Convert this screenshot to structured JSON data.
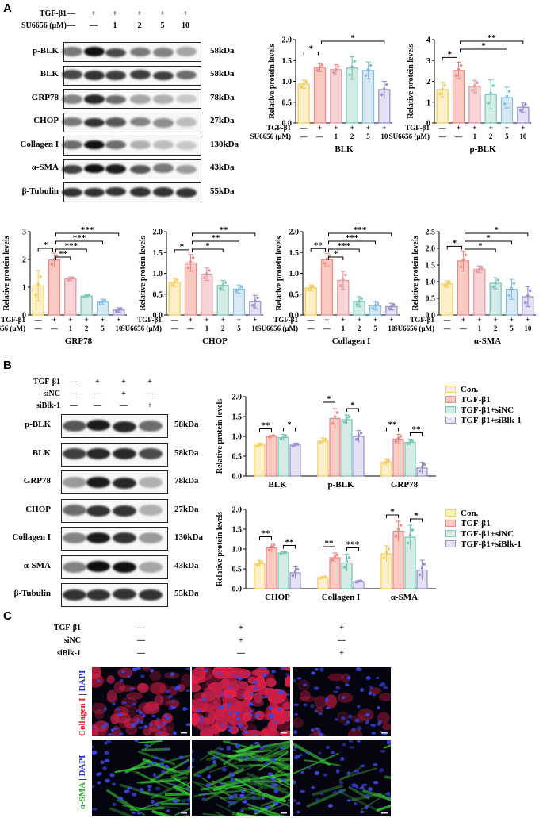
{
  "panels": {
    "A": "A",
    "B": "B",
    "C": "C"
  },
  "units": {
    "relative": "Relative protein levels",
    "tgf": "TGF-β1",
    "su": "SU6656 (μM)"
  },
  "panelA": {
    "header_row1": [
      "—",
      "+",
      "+",
      "+",
      "+",
      "+"
    ],
    "header_row2": [
      "—",
      "—",
      "1",
      "2",
      "5",
      "10"
    ],
    "blots": [
      {
        "name": "p-BLK",
        "kda": "58kDa"
      },
      {
        "name": "BLK",
        "kda": "58kDa"
      },
      {
        "name": "GRP78",
        "kda": "78kDa"
      },
      {
        "name": "CHOP",
        "kda": "27kDa"
      },
      {
        "name": "Collagen I",
        "kda": "130kDa"
      },
      {
        "name": "α-SMA",
        "kda": "43kDa"
      },
      {
        "name": "β-Tubulin",
        "kda": "55kDa"
      }
    ]
  },
  "panelB": {
    "header_labels": [
      "TGF-β1",
      "siNC",
      "siBlk-1"
    ],
    "header_rows": [
      [
        "—",
        "+",
        "+",
        "+"
      ],
      [
        "—",
        "—",
        "+",
        "—"
      ],
      [
        "—",
        "—",
        "—",
        "+"
      ]
    ],
    "blots": [
      {
        "name": "p-BLK",
        "kda": "58kDa"
      },
      {
        "name": "BLK",
        "kda": "58kDa"
      },
      {
        "name": "GRP78",
        "kda": "78kDa"
      },
      {
        "name": "CHOP",
        "kda": "27kDa"
      },
      {
        "name": "Collagen I",
        "kda": "130kDa"
      },
      {
        "name": "α-SMA",
        "kda": "43kDa"
      },
      {
        "name": "β-Tubulin",
        "kda": "55kDa"
      }
    ],
    "legend": [
      "Con.",
      "TGF-β1",
      "TGF-β1+siNC",
      "TGF-β1+siBlk-1"
    ]
  },
  "panelC": {
    "header_labels": [
      "TGF-β1",
      "siNC",
      "siBlk-1"
    ],
    "header_rows": [
      [
        "—",
        "+",
        "+"
      ],
      [
        "—",
        "+",
        "—"
      ],
      [
        "—",
        "—",
        "+"
      ]
    ],
    "row_labels": [
      {
        "stain": "Collagen I",
        "sep": " | ",
        "dapi": "DAPI"
      },
      {
        "stain": "α-SMA",
        "sep": " | ",
        "dapi": "DAPI"
      }
    ]
  },
  "colors": {
    "fills6": [
      "#fdf0c8",
      "#f9c9c4",
      "#f7d3d6",
      "#d4ebe7",
      "#d8e9f4",
      "#e4e1f2"
    ],
    "strokes6": [
      "#f2cf63",
      "#ec8c86",
      "#e79aa2",
      "#7ec8bb",
      "#8ac1e2",
      "#9b93cf"
    ],
    "fills4": [
      "#fdf0c8",
      "#f9c9c4",
      "#d4ebe7",
      "#e4e1f2"
    ],
    "strokes4": [
      "#f2cf63",
      "#ec8c86",
      "#7ec8bb",
      "#9b93cf"
    ]
  },
  "chart_data": [
    {
      "type": "bar",
      "xlabel": "BLK",
      "ylabel": "Relative protein levels",
      "ylim": [
        0,
        2.0
      ],
      "yticks": [
        "0.0",
        "0.5",
        "1.0",
        "1.5",
        "2.0"
      ],
      "values": [
        0.93,
        1.33,
        1.28,
        1.32,
        1.26,
        0.8
      ],
      "errors": [
        0.1,
        0.1,
        0.12,
        0.27,
        0.2,
        0.2
      ],
      "signif": [
        {
          "from": 0,
          "to": 1,
          "label": "*",
          "level": 0
        },
        {
          "from": 1,
          "to": 5,
          "label": "*",
          "level": 0
        }
      ]
    },
    {
      "type": "bar",
      "xlabel": "p-BLK",
      "ylabel": "Relative protein levels",
      "ylim": [
        0,
        4
      ],
      "yticks": [
        "0",
        "1",
        "2",
        "3",
        "4"
      ],
      "values": [
        1.6,
        2.52,
        1.75,
        1.37,
        1.22,
        0.75
      ],
      "errors": [
        0.35,
        0.4,
        0.3,
        0.7,
        0.5,
        0.25
      ],
      "signif": [
        {
          "from": 0,
          "to": 1,
          "label": "*",
          "level": 0
        },
        {
          "from": 1,
          "to": 5,
          "label": "**",
          "level": 0
        },
        {
          "from": 1,
          "to": 4,
          "label": "*",
          "level": 1
        }
      ]
    },
    {
      "type": "bar",
      "xlabel": "GRP78",
      "ylabel": "Relative protein levels",
      "ylim": [
        0,
        3
      ],
      "yticks": [
        "0",
        "1",
        "2",
        "3"
      ],
      "values": [
        1.05,
        1.98,
        1.3,
        0.68,
        0.47,
        0.18
      ],
      "errors": [
        0.55,
        0.25,
        0.07,
        0.05,
        0.1,
        0.08
      ],
      "signif": [
        {
          "from": 0,
          "to": 1,
          "label": "*",
          "level": 0
        },
        {
          "from": 1,
          "to": 5,
          "label": "***",
          "level": 0
        },
        {
          "from": 1,
          "to": 4,
          "label": "***",
          "level": 1
        },
        {
          "from": 1,
          "to": 3,
          "label": "***",
          "level": 2
        },
        {
          "from": 1,
          "to": 2,
          "label": "**",
          "level": 3
        }
      ]
    },
    {
      "type": "bar",
      "xlabel": "CHOP",
      "ylabel": "Relative protein levels",
      "ylim": [
        0,
        2.0
      ],
      "yticks": [
        "0.0",
        "0.5",
        "1.0",
        "1.5",
        "2.0"
      ],
      "values": [
        0.78,
        1.25,
        0.98,
        0.71,
        0.62,
        0.32
      ],
      "errors": [
        0.1,
        0.2,
        0.15,
        0.12,
        0.1,
        0.15
      ],
      "signif": [
        {
          "from": 0,
          "to": 1,
          "label": "*",
          "level": 0
        },
        {
          "from": 1,
          "to": 5,
          "label": "**",
          "level": 0
        },
        {
          "from": 1,
          "to": 4,
          "label": "**",
          "level": 1
        },
        {
          "from": 1,
          "to": 3,
          "label": "*",
          "level": 2
        }
      ]
    },
    {
      "type": "bar",
      "xlabel": "Collagen I",
      "ylabel": "Relative protein levels",
      "ylim": [
        0,
        2.0
      ],
      "yticks": [
        "0.0",
        "0.5",
        "1.0",
        "1.5",
        "2.0"
      ],
      "values": [
        0.65,
        1.33,
        0.83,
        0.32,
        0.22,
        0.2
      ],
      "errors": [
        0.07,
        0.15,
        0.22,
        0.12,
        0.1,
        0.08
      ],
      "signif": [
        {
          "from": 0,
          "to": 1,
          "label": "**",
          "level": 0
        },
        {
          "from": 1,
          "to": 5,
          "label": "***",
          "level": 0
        },
        {
          "from": 1,
          "to": 4,
          "label": "***",
          "level": 1
        },
        {
          "from": 1,
          "to": 3,
          "label": "***",
          "level": 2
        },
        {
          "from": 1,
          "to": 2,
          "label": "*",
          "level": 3
        }
      ]
    },
    {
      "type": "bar",
      "xlabel": "α-SMA",
      "ylabel": "Relative protein levels",
      "ylim": [
        0,
        2.5
      ],
      "yticks": [
        "0.0",
        "0.5",
        "1.0",
        "1.5",
        "2.0",
        "2.5"
      ],
      "values": [
        0.93,
        1.62,
        1.37,
        0.95,
        0.77,
        0.55
      ],
      "errors": [
        0.1,
        0.3,
        0.1,
        0.17,
        0.3,
        0.3
      ],
      "signif": [
        {
          "from": 0,
          "to": 1,
          "label": "*",
          "level": 0
        },
        {
          "from": 1,
          "to": 5,
          "label": "*",
          "level": 0
        },
        {
          "from": 1,
          "to": 4,
          "label": "*",
          "level": 1
        },
        {
          "from": 1,
          "to": 3,
          "label": "*",
          "level": 2
        }
      ]
    },
    {
      "type": "grouped-bar",
      "categories": [
        "BLK",
        "p-BLK",
        "GRP78"
      ],
      "ylabel": "Relative protein levels",
      "ylim": [
        0,
        2.0
      ],
      "yticks": [
        "0.0",
        "0.5",
        "1.0",
        "1.5",
        "2.0"
      ],
      "series": [
        {
          "name": "Con.",
          "values": [
            0.78,
            0.88,
            0.35
          ]
        },
        {
          "name": "TGF-β1",
          "values": [
            1.0,
            1.45,
            0.93
          ]
        },
        {
          "name": "TGF-β1+siNC",
          "values": [
            0.97,
            1.42,
            0.85
          ]
        },
        {
          "name": "TGF-β1+siBlk-1",
          "values": [
            0.78,
            1.0,
            0.2
          ]
        }
      ],
      "errors": [
        [
          0.05,
          0.08,
          0.08
        ],
        [
          0.03,
          0.25,
          0.12
        ],
        [
          0.08,
          0.12,
          0.08
        ],
        [
          0.05,
          0.15,
          0.15
        ]
      ],
      "signif": [
        {
          "cat": 0,
          "from": 0,
          "to": 1,
          "label": "**"
        },
        {
          "cat": 0,
          "from": 2,
          "to": 3,
          "label": "*"
        },
        {
          "cat": 1,
          "from": 0,
          "to": 1,
          "label": "*"
        },
        {
          "cat": 1,
          "from": 2,
          "to": 3,
          "label": "*"
        },
        {
          "cat": 2,
          "from": 0,
          "to": 1,
          "label": "**"
        },
        {
          "cat": 2,
          "from": 2,
          "to": 3,
          "label": "**"
        }
      ]
    },
    {
      "type": "grouped-bar",
      "categories": [
        "CHOP",
        "Collagen I",
        "α-SMA"
      ],
      "ylabel": "Relative protein levels",
      "ylim": [
        0,
        2.0
      ],
      "yticks": [
        "0.0",
        "0.5",
        "1.0",
        "1.5",
        "2.0"
      ],
      "series": [
        {
          "name": "Con.",
          "values": [
            0.63,
            0.28,
            0.88
          ]
        },
        {
          "name": "TGF-β1",
          "values": [
            1.03,
            0.78,
            1.45
          ]
        },
        {
          "name": "TGF-β1+siNC",
          "values": [
            0.9,
            0.65,
            1.3
          ]
        },
        {
          "name": "TGF-β1+siBlk-1",
          "values": [
            0.4,
            0.18,
            0.47
          ]
        }
      ],
      "errors": [
        [
          0.08,
          0.03,
          0.2
        ],
        [
          0.12,
          0.12,
          0.25
        ],
        [
          0.03,
          0.22,
          0.3
        ],
        [
          0.15,
          0.03,
          0.25
        ]
      ],
      "signif": [
        {
          "cat": 0,
          "from": 0,
          "to": 1,
          "label": "**"
        },
        {
          "cat": 0,
          "from": 2,
          "to": 3,
          "label": "**"
        },
        {
          "cat": 1,
          "from": 0,
          "to": 1,
          "label": "**"
        },
        {
          "cat": 1,
          "from": 2,
          "to": 3,
          "label": "***"
        },
        {
          "cat": 2,
          "from": 0,
          "to": 1,
          "label": "*"
        },
        {
          "cat": 2,
          "from": 2,
          "to": 3,
          "label": "*"
        }
      ]
    }
  ]
}
